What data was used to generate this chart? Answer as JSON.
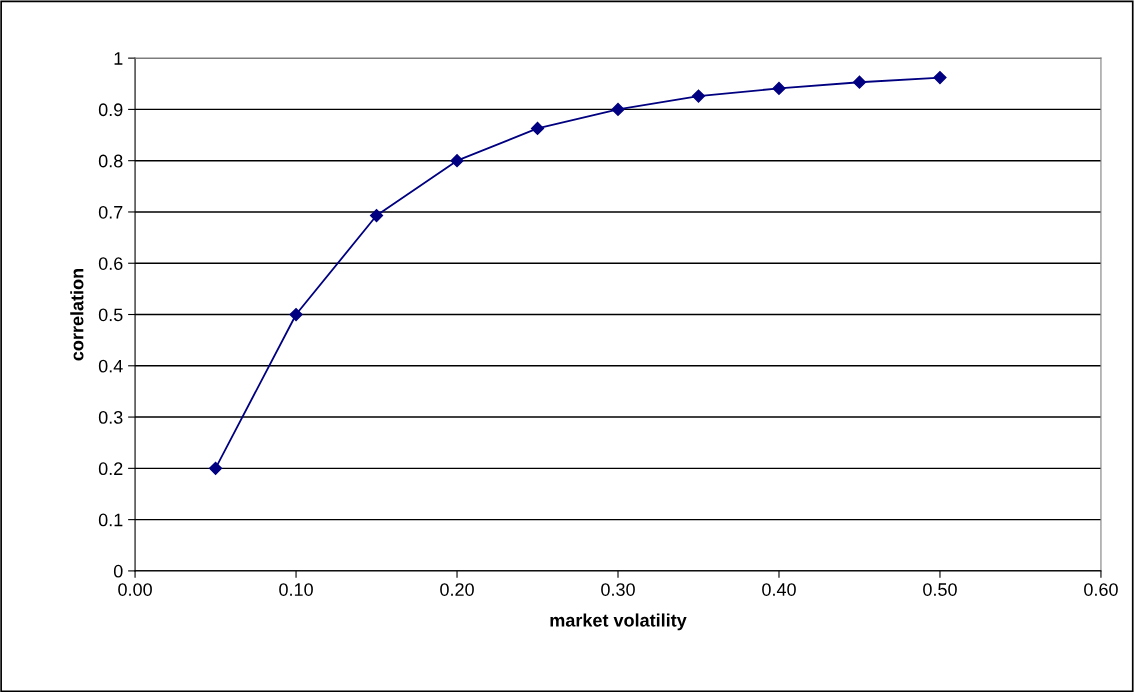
{
  "chart_data": {
    "type": "line",
    "xlabel": "market volatility",
    "ylabel": "correlation",
    "x": [
      0.05,
      0.1,
      0.15,
      0.2,
      0.25,
      0.3,
      0.35,
      0.4,
      0.45,
      0.5
    ],
    "series": [
      {
        "color": "#000080",
        "values": [
          0.2,
          0.5,
          0.693,
          0.8,
          0.863,
          0.9,
          0.926,
          0.941,
          0.953,
          0.962
        ]
      }
    ],
    "marker": "diamond",
    "line_style": "solid",
    "grid": "y",
    "legend": false,
    "xlim": [
      0,
      0.6
    ],
    "xticks": [
      {
        "value": 0,
        "label": "0.00"
      },
      {
        "value": 0.1,
        "label": "0.10"
      },
      {
        "value": 0.2,
        "label": "0.20"
      },
      {
        "value": 0.3,
        "label": "0.30"
      },
      {
        "value": 0.4,
        "label": "0.40"
      },
      {
        "value": 0.5,
        "label": "0.50"
      },
      {
        "value": 0.6,
        "label": "0.60"
      }
    ],
    "ylim": [
      0,
      1
    ],
    "yticks": [
      0,
      0.1,
      0.2,
      0.3,
      0.4,
      0.5,
      0.6,
      0.7,
      0.8,
      0.9,
      1
    ]
  }
}
